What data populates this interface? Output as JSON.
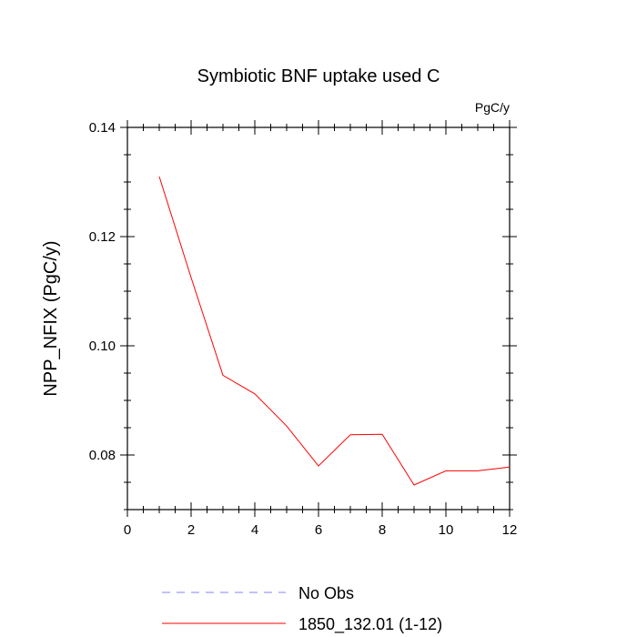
{
  "chart_data": {
    "type": "line",
    "title": "Symbiotic BNF uptake used C",
    "units_label": "PgC/y",
    "xlabel": "",
    "ylabel": "NPP_NFIX  (PgC/y)",
    "xlim": [
      0,
      12
    ],
    "ylim": [
      0.07,
      0.14
    ],
    "x_ticks": [
      0,
      2,
      4,
      6,
      8,
      10,
      12
    ],
    "x_tick_labels": [
      "0",
      "2",
      "4",
      "6",
      "8",
      "10",
      "12"
    ],
    "y_ticks": [
      0.08,
      0.1,
      0.12,
      0.14
    ],
    "y_tick_labels": [
      "0.08",
      "0.10",
      "0.12",
      "0.14"
    ],
    "grid": false,
    "legend_position": "bottom",
    "series": [
      {
        "name": "1850_132.01 (1-12)",
        "color": "#ff0000",
        "style": "solid",
        "x": [
          1,
          2,
          3,
          4,
          5,
          6,
          7,
          8,
          9,
          10,
          11,
          12
        ],
        "values": [
          0.131,
          0.1125,
          0.0946,
          0.0912,
          0.0853,
          0.078,
          0.0837,
          0.0838,
          0.0745,
          0.0771,
          0.0771,
          0.0778
        ]
      }
    ],
    "legend": [
      {
        "label": "No Obs",
        "color": "#8080ff",
        "style": "dashed"
      },
      {
        "label": "1850_132.01 (1-12)",
        "color": "#ff0000",
        "style": "solid"
      }
    ]
  }
}
